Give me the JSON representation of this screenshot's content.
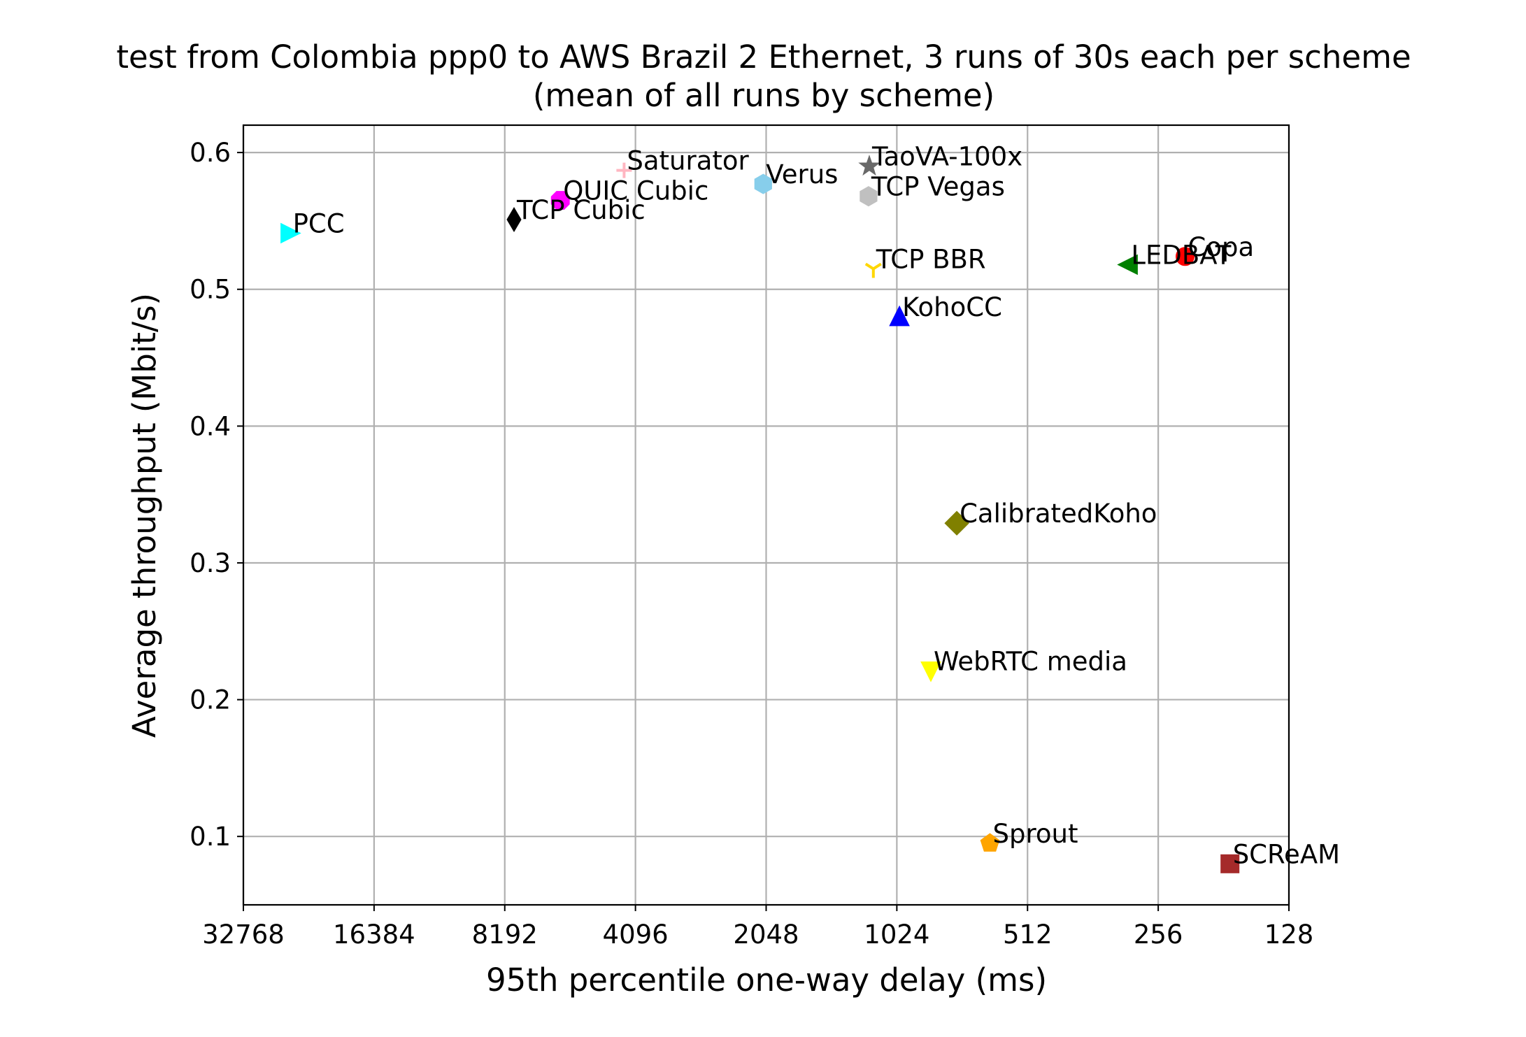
{
  "chart_data": {
    "type": "scatter",
    "title": "test from Colombia ppp0 to AWS Brazil 2 Ethernet, 3 runs of 30s each per scheme",
    "subtitle": "(mean of all runs by scheme)",
    "xlabel": "95th percentile one-way delay (ms)",
    "ylabel": "Average throughput (Mbit/s)",
    "x_scale": "log2",
    "x_reversed": true,
    "xlim": [
      32768,
      128
    ],
    "ylim": [
      0.05,
      0.62
    ],
    "xticks": [
      32768,
      16384,
      8192,
      4096,
      2048,
      1024,
      512,
      256,
      128
    ],
    "yticks": [
      0.1,
      0.2,
      0.3,
      0.4,
      0.5,
      0.6
    ],
    "ytick_labels": [
      "0.1",
      "0.2",
      "0.3",
      "0.4",
      "0.5",
      "0.6"
    ],
    "grid": true,
    "points": [
      {
        "name": "PCC",
        "x": 25600,
        "y": 0.541,
        "marker": "triangle-right",
        "color": "#00ffff"
      },
      {
        "name": "TCP Cubic",
        "x": 7800,
        "y": 0.551,
        "marker": "thin-diamond",
        "color": "#000000"
      },
      {
        "name": "QUIC Cubic",
        "x": 6100,
        "y": 0.565,
        "marker": "octagon",
        "color": "#ff00ff"
      },
      {
        "name": "Saturator",
        "x": 4350,
        "y": 0.587,
        "marker": "plus",
        "color": "#ffb6c1"
      },
      {
        "name": "Verus",
        "x": 2080,
        "y": 0.577,
        "marker": "hexagon",
        "color": "#87ceeb"
      },
      {
        "name": "TaoVA-100x",
        "x": 1185,
        "y": 0.59,
        "marker": "star",
        "color": "#696969"
      },
      {
        "name": "TCP Vegas",
        "x": 1190,
        "y": 0.568,
        "marker": "hexagon",
        "color": "#c0c0c0"
      },
      {
        "name": "TCP BBR",
        "x": 1160,
        "y": 0.515,
        "marker": "tri-down",
        "color": "#ffd700"
      },
      {
        "name": "KohoCC",
        "x": 1010,
        "y": 0.48,
        "marker": "triangle-up",
        "color": "#0000ff"
      },
      {
        "name": "LEDBAT",
        "x": 300,
        "y": 0.518,
        "marker": "triangle-left",
        "color": "#008000"
      },
      {
        "name": "Copa",
        "x": 222,
        "y": 0.524,
        "marker": "circle",
        "color": "#ff0000"
      },
      {
        "name": "CalibratedKoho",
        "x": 745,
        "y": 0.329,
        "marker": "diamond",
        "color": "#808000"
      },
      {
        "name": "WebRTC media",
        "x": 855,
        "y": 0.221,
        "marker": "triangle-down",
        "color": "#ffff00"
      },
      {
        "name": "Sprout",
        "x": 625,
        "y": 0.095,
        "marker": "pentagon",
        "color": "#ffa500"
      },
      {
        "name": "SCReAM",
        "x": 175,
        "y": 0.08,
        "marker": "square",
        "color": "#a52a2a"
      }
    ]
  }
}
